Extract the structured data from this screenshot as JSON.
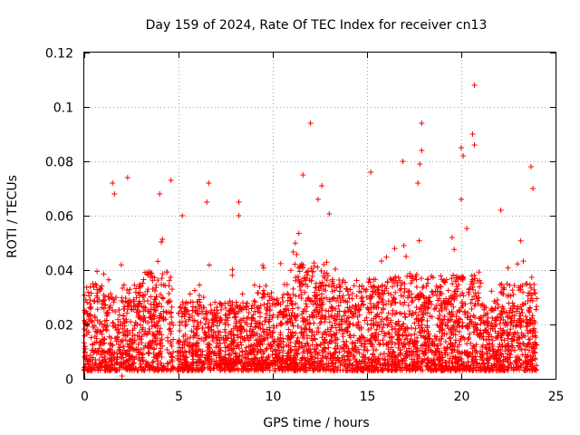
{
  "chart_data": {
    "type": "scatter",
    "title": "Day 159 of 2024, Rate Of TEC Index for receiver cn13",
    "xlabel": "GPS time / hours",
    "ylabel": "ROTI / TECUs",
    "xlim": [
      0,
      25
    ],
    "ylim": [
      0,
      0.12
    ],
    "x_ticks": [
      0,
      5,
      10,
      15,
      20,
      25
    ],
    "x_tick_labels": [
      "0",
      "5",
      "10",
      "15",
      "20",
      "25"
    ],
    "y_ticks": [
      0,
      0.02,
      0.04,
      0.06,
      0.08,
      0.1,
      0.12
    ],
    "y_tick_labels": [
      "0",
      "0.02",
      "0.04",
      "0.06",
      "0.08",
      "0.1",
      "0.12"
    ],
    "grid": true,
    "marker": "+",
    "series": [
      {
        "name": "ROTI",
        "color": "#ff0000",
        "x_range": [
          0.0,
          24.0
        ],
        "data_gap_hours": [
          4.75,
          4.95
        ],
        "typical_range": [
          0.003,
          0.035
        ],
        "notable_points": [
          {
            "x": 20.7,
            "y": 0.108
          },
          {
            "x": 12.0,
            "y": 0.094
          },
          {
            "x": 17.9,
            "y": 0.094
          },
          {
            "x": 20.6,
            "y": 0.09
          },
          {
            "x": 20.7,
            "y": 0.086
          },
          {
            "x": 20.0,
            "y": 0.085
          },
          {
            "x": 17.9,
            "y": 0.084
          },
          {
            "x": 20.1,
            "y": 0.082
          },
          {
            "x": 16.9,
            "y": 0.08
          },
          {
            "x": 17.8,
            "y": 0.079
          },
          {
            "x": 23.7,
            "y": 0.078
          },
          {
            "x": 15.2,
            "y": 0.076
          },
          {
            "x": 11.6,
            "y": 0.075
          },
          {
            "x": 2.3,
            "y": 0.074
          },
          {
            "x": 4.6,
            "y": 0.073
          },
          {
            "x": 1.5,
            "y": 0.072
          },
          {
            "x": 6.6,
            "y": 0.072
          },
          {
            "x": 17.7,
            "y": 0.072
          },
          {
            "x": 12.6,
            "y": 0.071
          },
          {
            "x": 23.8,
            "y": 0.07
          },
          {
            "x": 1.6,
            "y": 0.068
          },
          {
            "x": 4.0,
            "y": 0.068
          },
          {
            "x": 12.4,
            "y": 0.066
          },
          {
            "x": 8.2,
            "y": 0.065
          },
          {
            "x": 6.5,
            "y": 0.065
          },
          {
            "x": 20.0,
            "y": 0.066
          },
          {
            "x": 22.1,
            "y": 0.062
          },
          {
            "x": 5.2,
            "y": 0.06
          },
          {
            "x": 8.2,
            "y": 0.06
          },
          {
            "x": 2.0,
            "y": 0.001
          }
        ]
      }
    ]
  }
}
